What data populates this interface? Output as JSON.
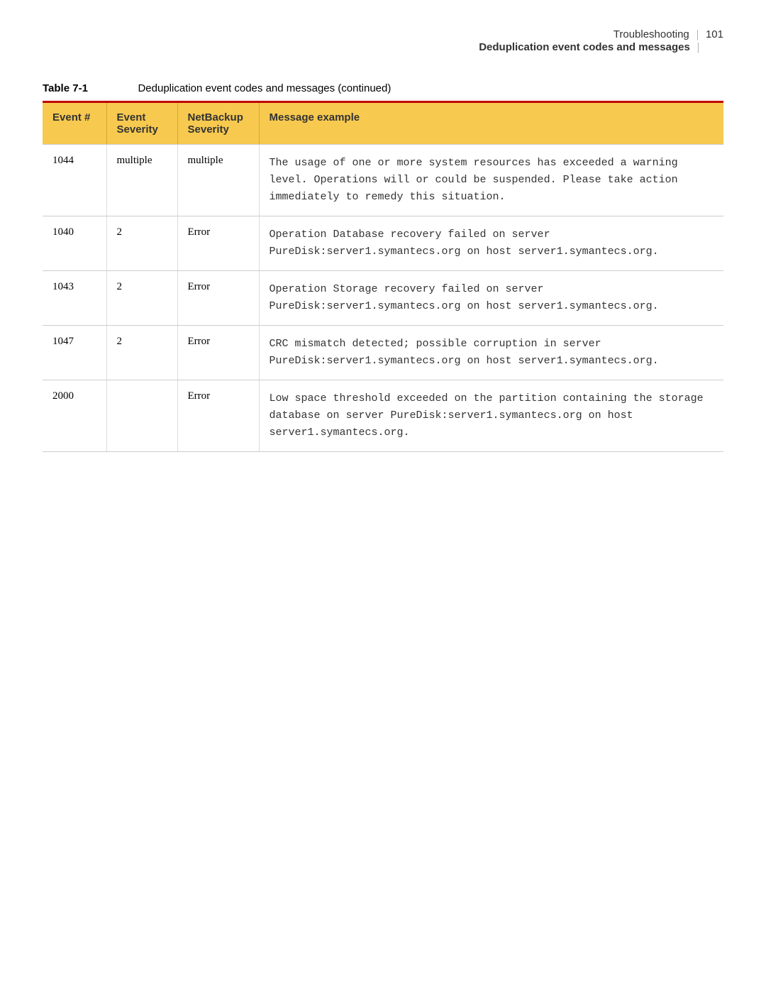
{
  "header": {
    "breadcrumb": "Troubleshooting",
    "page_number": "101",
    "subtitle": "Deduplication event codes and messages"
  },
  "table": {
    "label": "Table 7-1",
    "caption": "Deduplication event codes and messages (continued)",
    "columns": {
      "event": "Event #",
      "event_severity": "Event Severity",
      "netbackup_severity": "NetBackup Severity",
      "message": "Message example"
    },
    "rows": [
      {
        "event": "1044",
        "event_severity": "multiple",
        "netbackup_severity": "multiple",
        "message": "The usage of one or more system resources has exceeded a warning level. Operations will or could be suspended. Please take action immediately to remedy this situation."
      },
      {
        "event": "1040",
        "event_severity": "2",
        "netbackup_severity": "Error",
        "message": "Operation Database recovery failed on server PureDisk:server1.symantecs.org on host server1.symantecs.org."
      },
      {
        "event": "1043",
        "event_severity": "2",
        "netbackup_severity": "Error",
        "message": "Operation Storage recovery failed on server PureDisk:server1.symantecs.org on host server1.symantecs.org."
      },
      {
        "event": "1047",
        "event_severity": "2",
        "netbackup_severity": "Error",
        "message": "CRC mismatch detected; possible corruption in server PureDisk:server1.symantecs.org on host server1.symantecs.org."
      },
      {
        "event": "2000",
        "event_severity": "",
        "netbackup_severity": "Error",
        "message": "Low space threshold exceeded on the partition containing the storage database on server PureDisk:server1.symantecs.org on host server1.symantecs.org."
      }
    ]
  }
}
